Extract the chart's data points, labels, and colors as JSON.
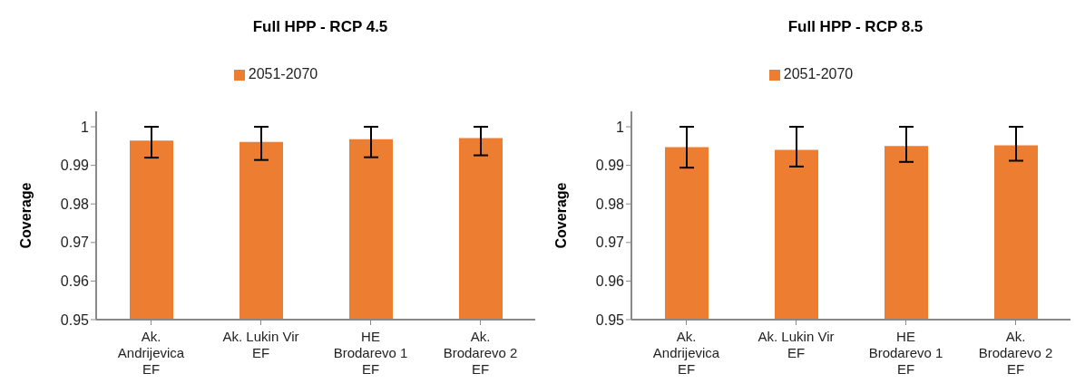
{
  "chart_data": [
    {
      "type": "bar",
      "title": "Full HPP - RCP 4.5",
      "ylabel": "Coverage",
      "categories": [
        "Ak.\nAndrijevica\nEF",
        "Ak. Lukin Vir\nEF",
        "HE\nBrodarevo 1\nEF",
        "Ak.\nBrodarevo 2\nEF"
      ],
      "series": [
        {
          "name": "2051-2070",
          "color": "#ed7d31",
          "values": [
            0.9964,
            0.9961,
            0.9968,
            0.9971
          ],
          "errors": [
            [
              0.992,
              1.0
            ],
            [
              0.9914,
              1.0
            ],
            [
              0.9921,
              1.0
            ],
            [
              0.9926,
              1.0
            ]
          ]
        }
      ],
      "ylim": [
        0.95,
        1.004
      ],
      "yticks": [
        0.95,
        0.96,
        0.97,
        0.98,
        0.99,
        1
      ],
      "grid": false,
      "legend": "top"
    },
    {
      "type": "bar",
      "title": "Full HPP - RCP 8.5",
      "ylabel": "Coverage",
      "categories": [
        "Ak.\nAndrijevica\nEF",
        "Ak. Lukin Vir\nEF",
        "HE\nBrodarevo 1\nEF",
        "Ak.\nBrodarevo 2\nEF"
      ],
      "series": [
        {
          "name": "2051-2070",
          "color": "#ed7d31",
          "values": [
            0.9947,
            0.994,
            0.995,
            0.9952
          ],
          "errors": [
            [
              0.9894,
              1.0
            ],
            [
              0.9897,
              1.0
            ],
            [
              0.9909,
              1.0
            ],
            [
              0.9912,
              1.0
            ]
          ]
        }
      ],
      "ylim": [
        0.95,
        1.004
      ],
      "yticks": [
        0.95,
        0.96,
        0.97,
        0.98,
        0.99,
        1
      ],
      "grid": false,
      "legend": "top"
    }
  ]
}
